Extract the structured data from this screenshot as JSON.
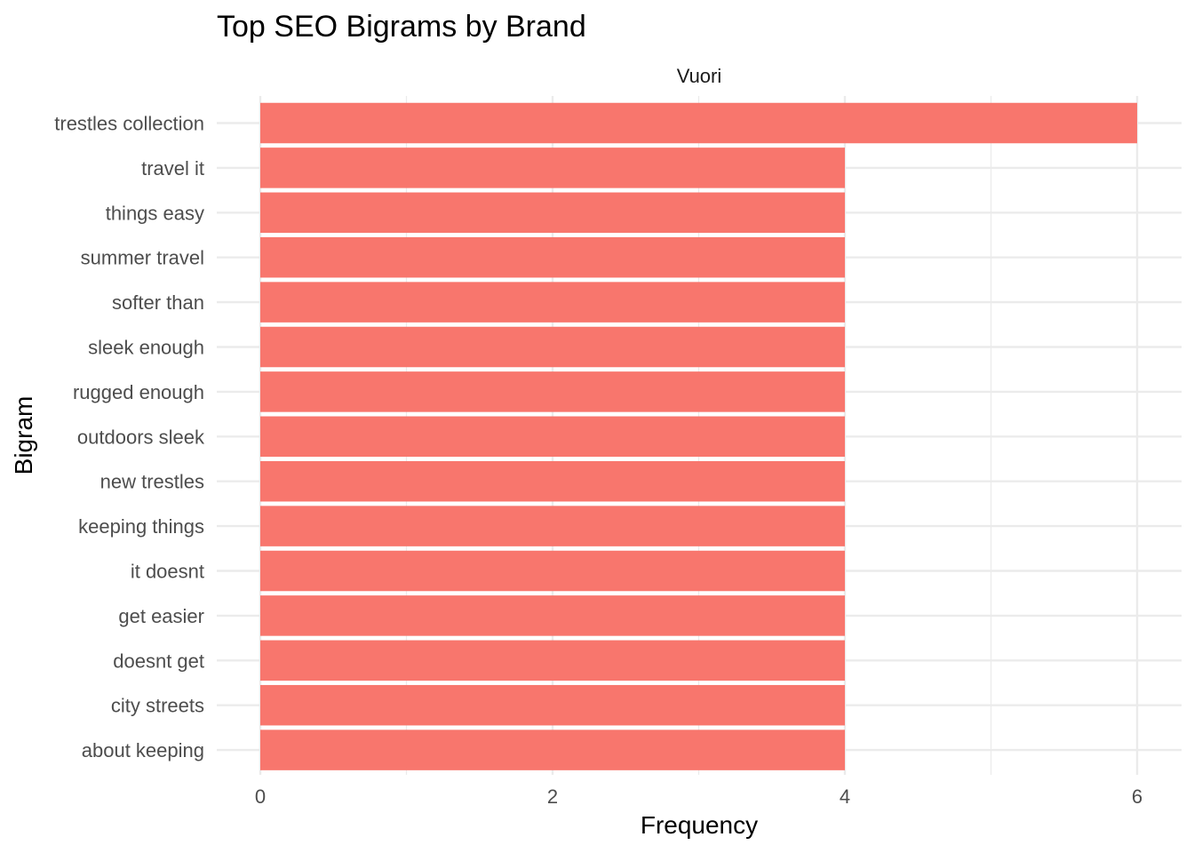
{
  "chart_data": {
    "type": "bar",
    "orientation": "horizontal",
    "title": "Top SEO Bigrams by Brand",
    "facet": "Vuori",
    "xlabel": "Frequency",
    "ylabel": "Bigram",
    "xlim": [
      0,
      6
    ],
    "x_ticks": [
      0,
      2,
      4,
      6
    ],
    "grid": true,
    "legend": "none",
    "bar_color": "#F8766D",
    "categories": [
      "trestles collection",
      "travel it",
      "things easy",
      "summer travel",
      "softer than",
      "sleek enough",
      "rugged enough",
      "outdoors sleek",
      "new trestles",
      "keeping things",
      "it doesnt",
      "get easier",
      "doesnt get",
      "city streets",
      "about keeping"
    ],
    "values": [
      6,
      4,
      4,
      4,
      4,
      4,
      4,
      4,
      4,
      4,
      4,
      4,
      4,
      4,
      4
    ]
  }
}
